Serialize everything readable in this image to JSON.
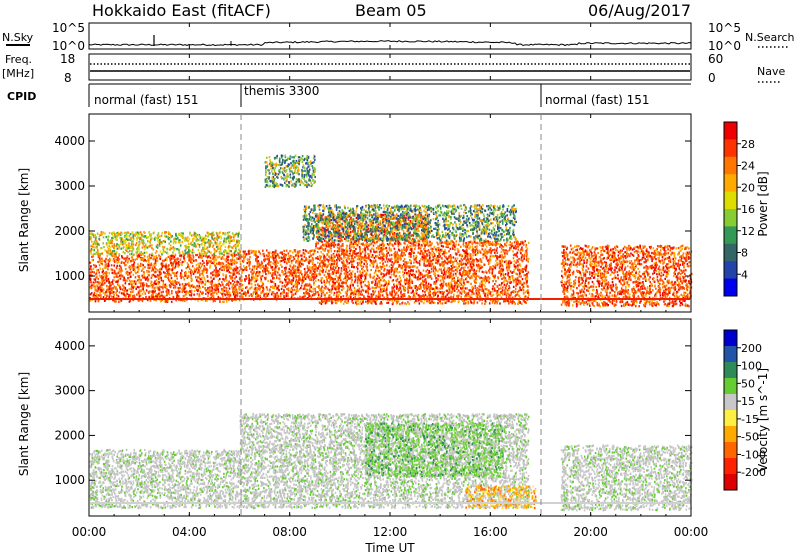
{
  "header": {
    "station": "Hokkaido East (fitACF)",
    "beam": "Beam 05",
    "date": "06/Aug/2017"
  },
  "noise_panel": {
    "left_label": "N.Sky",
    "right_label": "N.Search",
    "left_ticks": [
      "10^5",
      "10^0"
    ],
    "right_ticks": [
      "10^5",
      "10^0"
    ]
  },
  "freq_panel": {
    "left_label_1": "Freq.",
    "left_label_2": "[MHz]",
    "right_label": "Nave",
    "left_ticks": [
      "18",
      "8"
    ],
    "right_ticks": [
      "60",
      "0"
    ]
  },
  "cpid_panel": {
    "label": "CPID",
    "segments": [
      {
        "label": "normal (fast) 151",
        "start_hour": 0
      },
      {
        "label": "themis 3300",
        "start_hour": 6
      },
      {
        "label": "normal (fast) 151",
        "start_hour": 18
      }
    ]
  },
  "x_axis": {
    "label": "Time UT",
    "ticks": [
      "00:00",
      "04:00",
      "08:00",
      "12:00",
      "16:00",
      "20:00",
      "00:00"
    ],
    "tick_hours": [
      0,
      4,
      8,
      12,
      16,
      20,
      24
    ]
  },
  "power_panel": {
    "ylabel": "Slant Range [km]",
    "yticks": [
      "4000",
      "3000",
      "2000",
      "1000"
    ],
    "ytick_values": [
      4000,
      3000,
      2000,
      1000
    ],
    "colorbar_label": "Power [dB]",
    "colorbar_ticks": [
      "28",
      "24",
      "20",
      "16",
      "12",
      "8",
      "4"
    ],
    "colorbar_colors": [
      "#ee0000",
      "#ff3300",
      "#ff7700",
      "#ffaa00",
      "#dddd00",
      "#88cc33",
      "#339955",
      "#336666",
      "#2244aa",
      "#0000ee"
    ]
  },
  "velocity_panel": {
    "ylabel": "Slant Range [km]",
    "yticks": [
      "4000",
      "3000",
      "2000",
      "1000"
    ],
    "ytick_values": [
      4000,
      3000,
      2000,
      1000
    ],
    "colorbar_label": "Velocity [m s^-1]",
    "colorbar_ticks": [
      "200",
      "100",
      "50",
      "15",
      "-15",
      "-50",
      "-100",
      "-200"
    ],
    "colorbar_colors": [
      "#0000cc",
      "#2255aa",
      "#2e8b57",
      "#66cc33",
      "#c8c8c8",
      "#ffee44",
      "#ffaa00",
      "#ff6600",
      "#ff2200",
      "#dd0000"
    ]
  },
  "chart_data": {
    "type": "heatmap",
    "time_range_hours": [
      0,
      24
    ],
    "range_km": [
      200,
      4600
    ],
    "mode_change_hours": [
      6,
      18
    ],
    "power_clusters": [
      {
        "t0": 0.0,
        "t1": 6.0,
        "r0": 450,
        "r1": 1500,
        "level": "high"
      },
      {
        "t0": 0.0,
        "t1": 6.0,
        "r0": 1500,
        "r1": 2000,
        "level": "mid"
      },
      {
        "t0": 6.0,
        "t1": 9.0,
        "r0": 500,
        "r1": 1600,
        "level": "high"
      },
      {
        "t0": 9.0,
        "t1": 13.5,
        "r0": 400,
        "r1": 2400,
        "level": "high"
      },
      {
        "t0": 13.5,
        "t1": 17.5,
        "r0": 400,
        "r1": 1800,
        "level": "high"
      },
      {
        "t0": 8.5,
        "t1": 17.0,
        "r0": 1800,
        "r1": 2600,
        "level": "low"
      },
      {
        "t0": 18.8,
        "t1": 24.0,
        "r0": 350,
        "r1": 1700,
        "level": "high"
      },
      {
        "t0": 7.0,
        "t1": 9.0,
        "r0": 3000,
        "r1": 3700,
        "level": "low"
      }
    ],
    "velocity_clusters": [
      {
        "t0": 0.0,
        "t1": 6.0,
        "r0": 400,
        "r1": 1700,
        "level": "near-zero"
      },
      {
        "t0": 6.0,
        "t1": 17.5,
        "r0": 400,
        "r1": 2500,
        "level": "near-zero"
      },
      {
        "t0": 11.0,
        "t1": 16.5,
        "r0": 1100,
        "r1": 2300,
        "level": "positive"
      },
      {
        "t0": 15.0,
        "t1": 17.8,
        "r0": 400,
        "r1": 900,
        "level": "negative"
      },
      {
        "t0": 18.8,
        "t1": 24.0,
        "r0": 350,
        "r1": 1800,
        "level": "near-zero"
      }
    ]
  }
}
